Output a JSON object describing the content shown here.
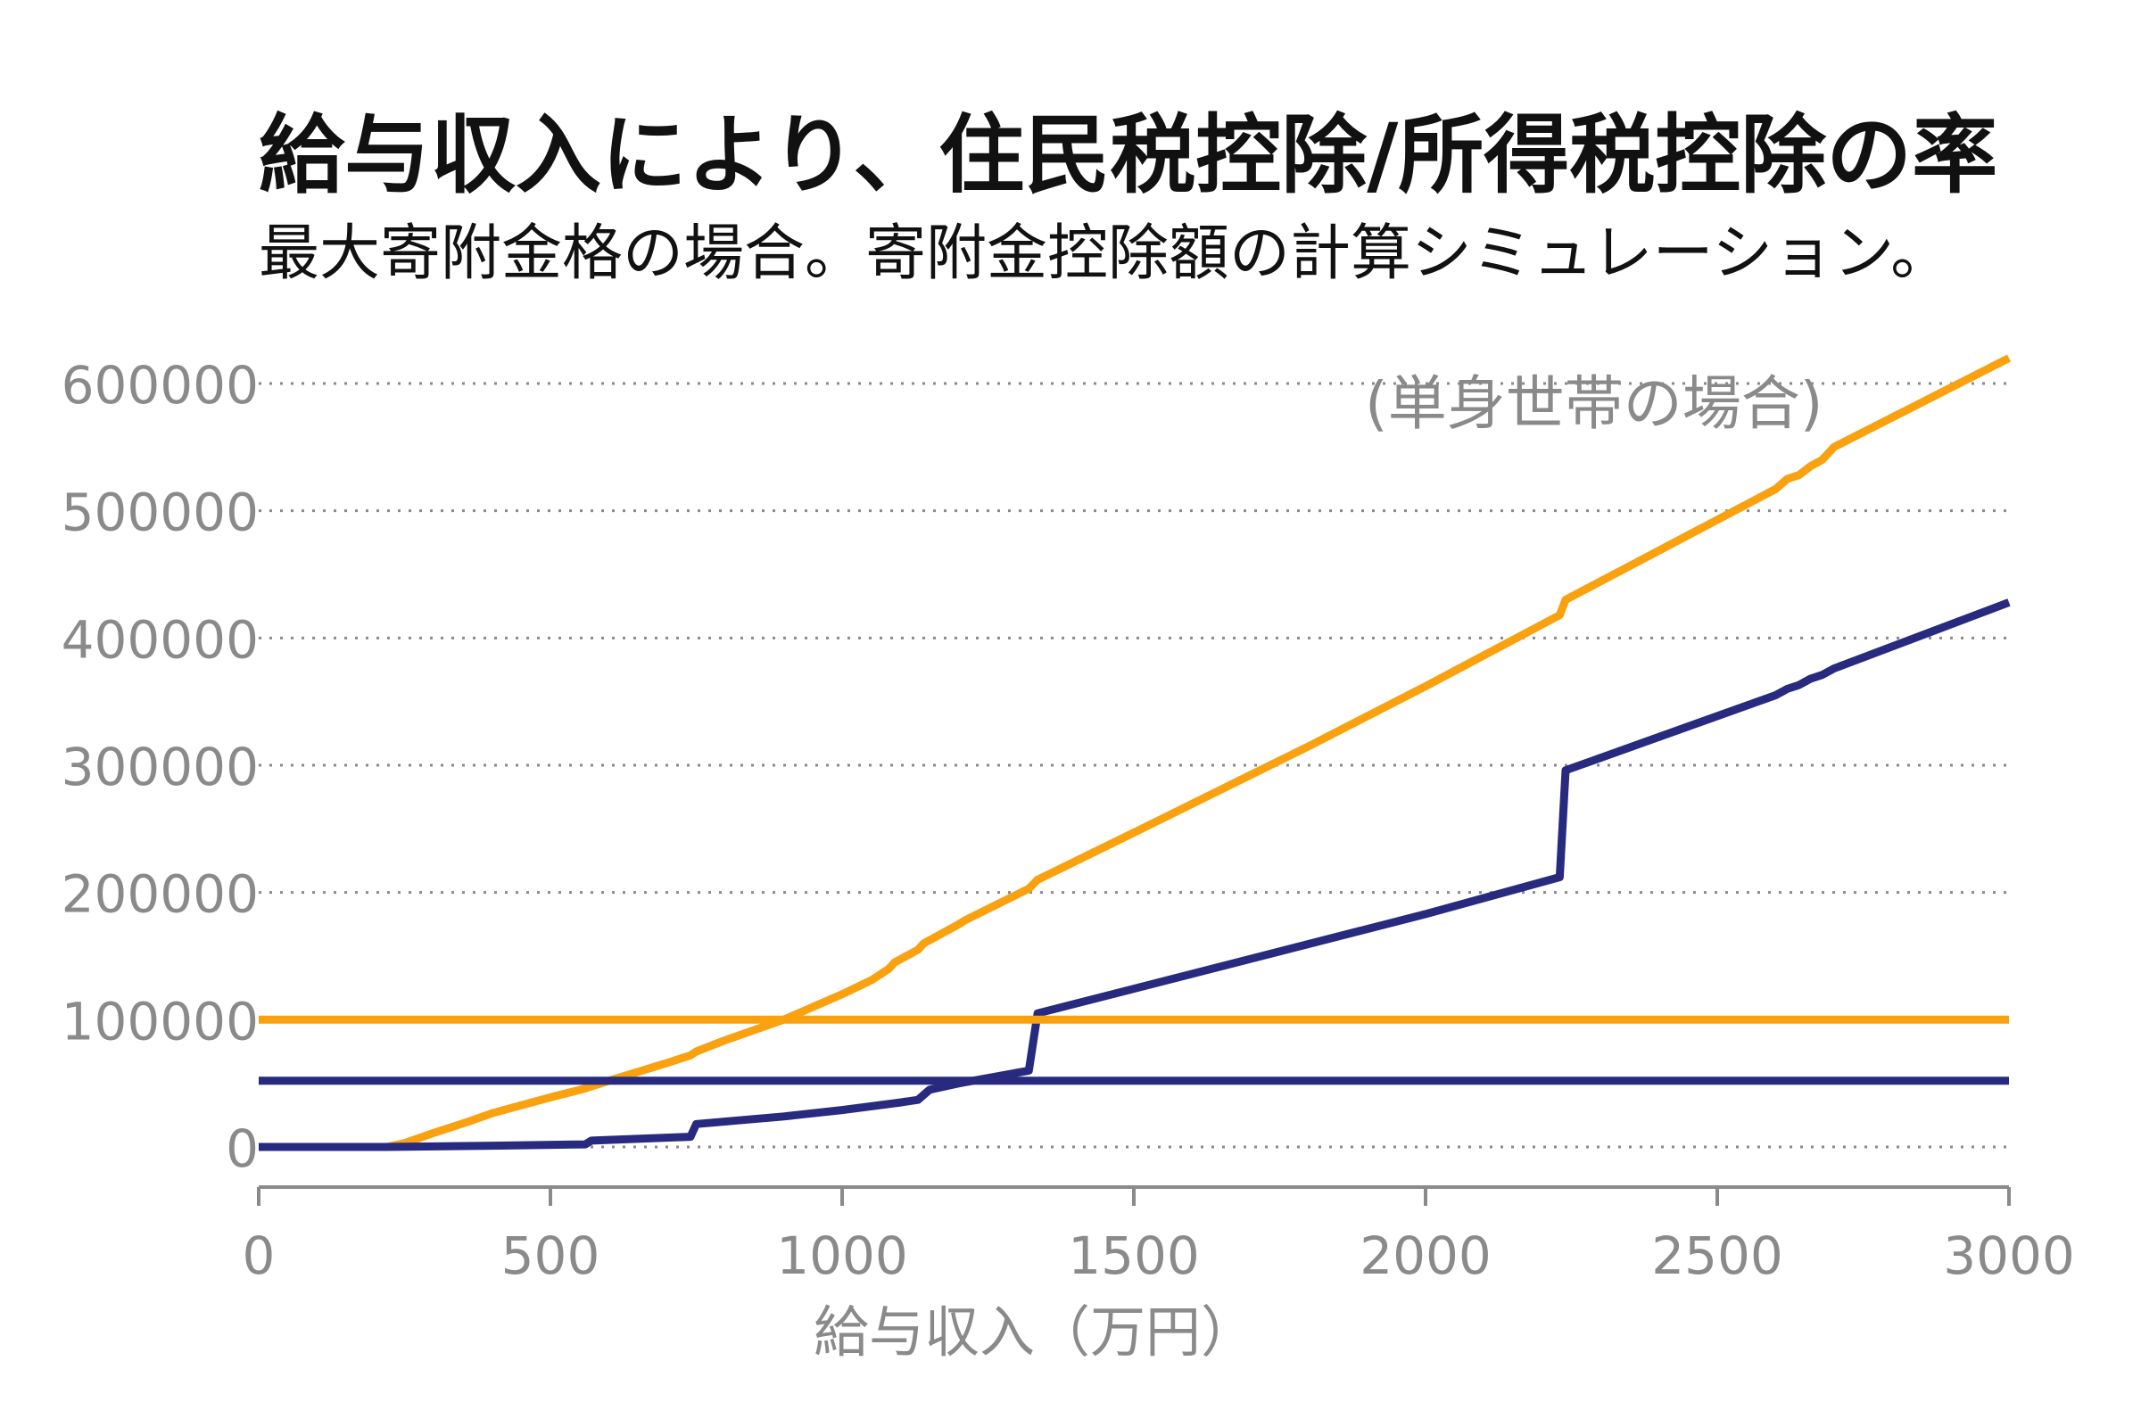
{
  "title": "給与収入により、住民税控除/所得税控除の率",
  "subtitle": "最大寄附金格の場合。寄附金控除額の計算シミュレーション。",
  "chart_data": {
    "type": "line",
    "annotation": "(単身世帯の場合)",
    "xlabel": "給与収入（万円）",
    "ylabel": "",
    "xlim": [
      0,
      3000
    ],
    "ylim": [
      0,
      600000
    ],
    "x_ticks": [
      "0",
      "500",
      "1000",
      "1500",
      "2000",
      "2500",
      "3000"
    ],
    "y_ticks": [
      "0",
      "100000",
      "200000",
      "300000",
      "400000",
      "500000",
      "600000"
    ],
    "grid": "horizontal dotted",
    "legend": "none",
    "series": [
      {
        "color": "#F9A10F",
        "points": [
          [
            0,
            0
          ],
          [
            220,
            0
          ],
          [
            250,
            3000
          ],
          [
            300,
            11000
          ],
          [
            360,
            20000
          ],
          [
            400,
            26500
          ],
          [
            500,
            39000
          ],
          [
            560,
            46000
          ],
          [
            600,
            52000
          ],
          [
            700,
            66000
          ],
          [
            740,
            72000
          ],
          [
            750,
            75000
          ],
          [
            800,
            84000
          ],
          [
            900,
            100000
          ],
          [
            1000,
            120000
          ],
          [
            1050,
            131000
          ],
          [
            1080,
            140000
          ],
          [
            1090,
            145000
          ],
          [
            1130,
            155000
          ],
          [
            1140,
            160000
          ],
          [
            1200,
            175000
          ],
          [
            1210,
            178000
          ],
          [
            1320,
            203000
          ],
          [
            1335,
            210000
          ],
          [
            1500,
            247000
          ],
          [
            1800,
            315000
          ],
          [
            2000,
            362000
          ],
          [
            2230,
            418000
          ],
          [
            2240,
            430000
          ],
          [
            2600,
            517000
          ],
          [
            2620,
            525000
          ],
          [
            2640,
            528000
          ],
          [
            2660,
            535000
          ],
          [
            2680,
            540000
          ],
          [
            2700,
            550000
          ],
          [
            3000,
            620000
          ]
        ]
      },
      {
        "color": "#272A7F",
        "points": [
          [
            0,
            0
          ],
          [
            220,
            0
          ],
          [
            400,
            1000
          ],
          [
            560,
            2000
          ],
          [
            570,
            5000
          ],
          [
            740,
            8000
          ],
          [
            750,
            18000
          ],
          [
            900,
            24000
          ],
          [
            1000,
            29000
          ],
          [
            1100,
            35000
          ],
          [
            1130,
            37000
          ],
          [
            1150,
            45000
          ],
          [
            1200,
            50000
          ],
          [
            1320,
            60000
          ],
          [
            1335,
            105000
          ],
          [
            2000,
            183000
          ],
          [
            2230,
            212000
          ],
          [
            2240,
            296000
          ],
          [
            2600,
            355000
          ],
          [
            2620,
            360000
          ],
          [
            2640,
            363000
          ],
          [
            2660,
            368000
          ],
          [
            2680,
            371000
          ],
          [
            2700,
            376000
          ],
          [
            3000,
            428000
          ]
        ]
      },
      {
        "color": "#F9A10F",
        "points": [
          [
            0,
            100000
          ],
          [
            3000,
            100000
          ]
        ]
      },
      {
        "color": "#272A7F",
        "points": [
          [
            0,
            52000
          ],
          [
            3000,
            52000
          ]
        ]
      }
    ]
  }
}
